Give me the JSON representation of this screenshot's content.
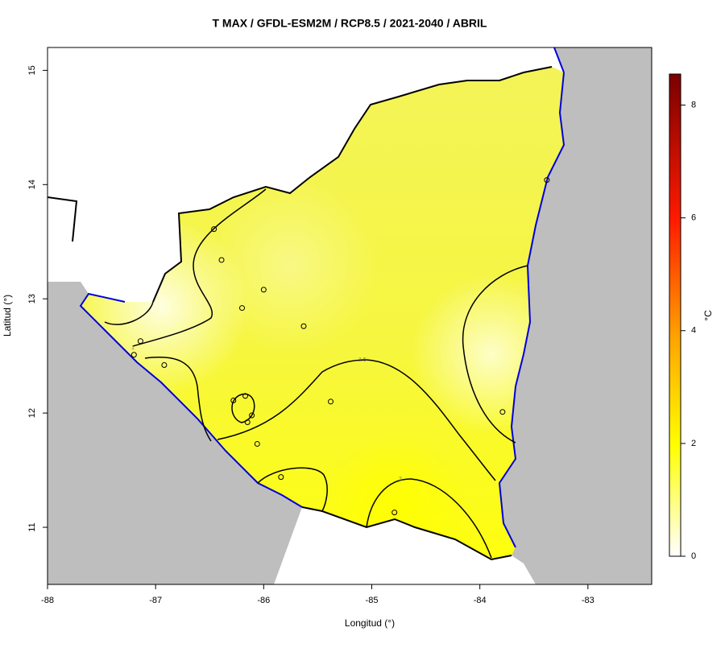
{
  "chart_data": {
    "type": "map",
    "title": "T MAX / GFDL-ESM2M / RCP8.5 / 2021-2040 / ABRIL",
    "x_label": "Longitud (°)",
    "y_label": "Latitud (°)",
    "xlim": [
      -88,
      -82.41
    ],
    "ylim": [
      10.5,
      15.2
    ],
    "xticks": [
      -88,
      -87,
      -86,
      -85,
      -84,
      -83
    ],
    "yticks": [
      11,
      12,
      13,
      14,
      15
    ],
    "colorbar_label": "°C",
    "clim": [
      0,
      8.55
    ],
    "cticks": [
      0,
      2,
      4,
      6,
      8
    ],
    "contour_levels": [
      1,
      1.5,
      2
    ],
    "points": {
      "x": [
        -86.46,
        -86.39,
        -86.0,
        -86.2,
        -85.63,
        -87.14,
        -87.2,
        -86.92,
        -85.38,
        -86.28,
        -86.17,
        -86.11,
        -86.15,
        -86.06,
        -85.84,
        -84.79,
        -83.79,
        -83.38
      ],
      "y": [
        13.61,
        13.34,
        13.08,
        12.92,
        12.76,
        12.63,
        12.51,
        12.42,
        12.1,
        12.11,
        12.15,
        11.98,
        11.92,
        11.73,
        11.44,
        11.13,
        12.01,
        14.04
      ]
    }
  }
}
